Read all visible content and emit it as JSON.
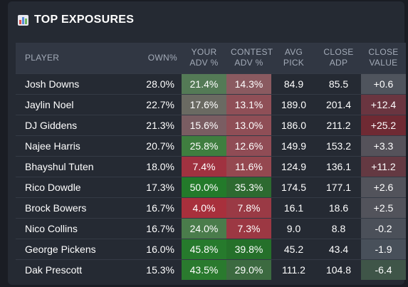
{
  "title": "TOP EXPOSURES",
  "columns": {
    "player": [
      "PLAYER"
    ],
    "own": [
      "OWN%"
    ],
    "your_adv": [
      "YOUR",
      "ADV %"
    ],
    "contest_adv": [
      "CONTEST",
      "ADV %"
    ],
    "avg_pick": [
      "AVG",
      "PICK"
    ],
    "close_adp": [
      "CLOSE",
      "ADP"
    ],
    "close_value": [
      "CLOSE",
      "VALUE"
    ]
  },
  "rows": [
    {
      "player": "Josh Downs",
      "own": "28.0%",
      "your_adv": "21.4%",
      "your_adv_color": "#547a56",
      "contest_adv": "14.3%",
      "contest_adv_color": "#8a5a60",
      "avg_pick": "84.9",
      "close_adp": "85.5",
      "close_value": "+0.6",
      "close_value_color": "#4f545d"
    },
    {
      "player": "Jaylin Noel",
      "own": "22.7%",
      "your_adv": "17.6%",
      "your_adv_color": "#6a6a62",
      "contest_adv": "13.1%",
      "contest_adv_color": "#8f4f57",
      "avg_pick": "189.0",
      "close_adp": "201.4",
      "close_value": "+12.4",
      "close_value_color": "#6a3540"
    },
    {
      "player": "DJ Giddens",
      "own": "21.3%",
      "your_adv": "15.6%",
      "your_adv_color": "#7a5d62",
      "contest_adv": "13.0%",
      "contest_adv_color": "#8f4e56",
      "avg_pick": "186.0",
      "close_adp": "211.2",
      "close_value": "+25.2",
      "close_value_color": "#6f2a33"
    },
    {
      "player": "Najee Harris",
      "own": "20.7%",
      "your_adv": "25.8%",
      "your_adv_color": "#3f7e3f",
      "contest_adv": "12.6%",
      "contest_adv_color": "#904c55",
      "avg_pick": "149.9",
      "close_adp": "153.2",
      "close_value": "+3.3",
      "close_value_color": "#55525a"
    },
    {
      "player": "Bhayshul Tuten",
      "own": "18.0%",
      "your_adv": "7.4%",
      "your_adv_color": "#a03240",
      "contest_adv": "11.6%",
      "contest_adv_color": "#954850",
      "avg_pick": "124.9",
      "close_adp": "136.1",
      "close_value": "+11.2",
      "close_value_color": "#643942"
    },
    {
      "player": "Rico Dowdle",
      "own": "17.3%",
      "your_adv": "50.0%",
      "your_adv_color": "#237a2a",
      "contest_adv": "35.3%",
      "contest_adv_color": "#2d6a30",
      "avg_pick": "174.5",
      "close_adp": "177.1",
      "close_value": "+2.6",
      "close_value_color": "#52535b"
    },
    {
      "player": "Brock Bowers",
      "own": "16.7%",
      "your_adv": "4.0%",
      "your_adv_color": "#a8303c",
      "contest_adv": "7.8%",
      "contest_adv_color": "#9a3a45",
      "avg_pick": "16.1",
      "close_adp": "18.6",
      "close_value": "+2.5",
      "close_value_color": "#52535b"
    },
    {
      "player": "Nico Collins",
      "own": "16.7%",
      "your_adv": "24.0%",
      "your_adv_color": "#4a7c4b",
      "contest_adv": "7.3%",
      "contest_adv_color": "#9c3843",
      "avg_pick": "9.0",
      "close_adp": "8.8",
      "close_value": "-0.2",
      "close_value_color": "#4b5059"
    },
    {
      "player": "George Pickens",
      "own": "16.0%",
      "your_adv": "45.8%",
      "your_adv_color": "#267a2c",
      "contest_adv": "39.8%",
      "contest_adv_color": "#25702a",
      "avg_pick": "45.2",
      "close_adp": "43.4",
      "close_value": "-1.9",
      "close_value_color": "#48505a"
    },
    {
      "player": "Dak Prescott",
      "own": "15.3%",
      "your_adv": "43.5%",
      "your_adv_color": "#2a7a2e",
      "contest_adv": "29.0%",
      "contest_adv_color": "#3c6a40",
      "avg_pick": "111.2",
      "close_adp": "104.8",
      "close_value": "-6.4",
      "close_value_color": "#3f5548"
    }
  ]
}
